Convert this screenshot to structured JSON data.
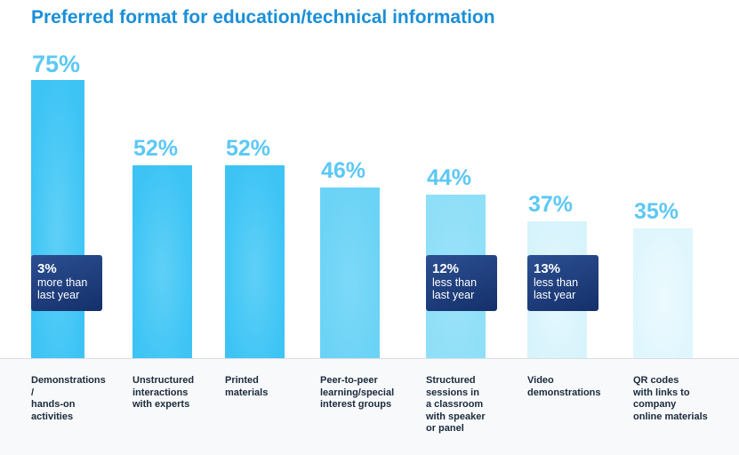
{
  "chart_data": {
    "type": "bar",
    "title": "Preferred format for education/technical information",
    "categories": [
      "Demonstrations / hands-on activities",
      "Unstructured interactions with experts",
      "Printed materials",
      "Peer-to-peer learning/special interest groups",
      "Structured sessions in a classroom with speaker or panel",
      "Video demonstrations",
      "QR codes with links to company online materials"
    ],
    "category_lines": [
      [
        "Demonstrations",
        "/",
        "hands-on",
        "activities"
      ],
      [
        "Unstructured",
        "interactions",
        "with experts"
      ],
      [
        "Printed",
        "materials"
      ],
      [
        "Peer-to-peer",
        "learning/special",
        "interest groups"
      ],
      [
        "Structured",
        "sessions in",
        "a classroom",
        "with speaker",
        "or panel"
      ],
      [
        "Video",
        "demonstrations"
      ],
      [
        "QR codes",
        "with links to",
        "company",
        "online materials"
      ]
    ],
    "values": [
      75,
      52,
      52,
      46,
      44,
      37,
      35
    ],
    "value_labels": [
      "75%",
      "52%",
      "52%",
      "46%",
      "44%",
      "37%",
      "35%"
    ],
    "unit": "%",
    "ylim": [
      0,
      75
    ],
    "xlabel": "",
    "ylabel": "",
    "grid": false,
    "bar_colors": [
      [
        "#5fd0f7",
        "#3dc4f5"
      ],
      [
        "#5fd0f7",
        "#3dc4f5"
      ],
      [
        "#5fd0f7",
        "#3dc4f5"
      ],
      [
        "#7dd9f8",
        "#6bd3f6"
      ],
      [
        "#9be3fa",
        "#8fdff8"
      ],
      [
        "#e6f8fe",
        "#d7f3fc"
      ],
      [
        "#ecfaff",
        "#dff6fd"
      ]
    ],
    "annotations": [
      {
        "bar": 0,
        "value": "3%",
        "line1": "more than",
        "line2": "last year"
      },
      {
        "bar": 4,
        "value": "12%",
        "line1": "less than",
        "line2": "last year"
      },
      {
        "bar": 5,
        "value": "13%",
        "line1": "less than",
        "line2": "last year"
      }
    ]
  },
  "colors": {
    "title": "#1a8fd8",
    "value_text": "#5cc8f5",
    "badge": "#1c3a7a",
    "label_text": "#1b2a3a"
  }
}
